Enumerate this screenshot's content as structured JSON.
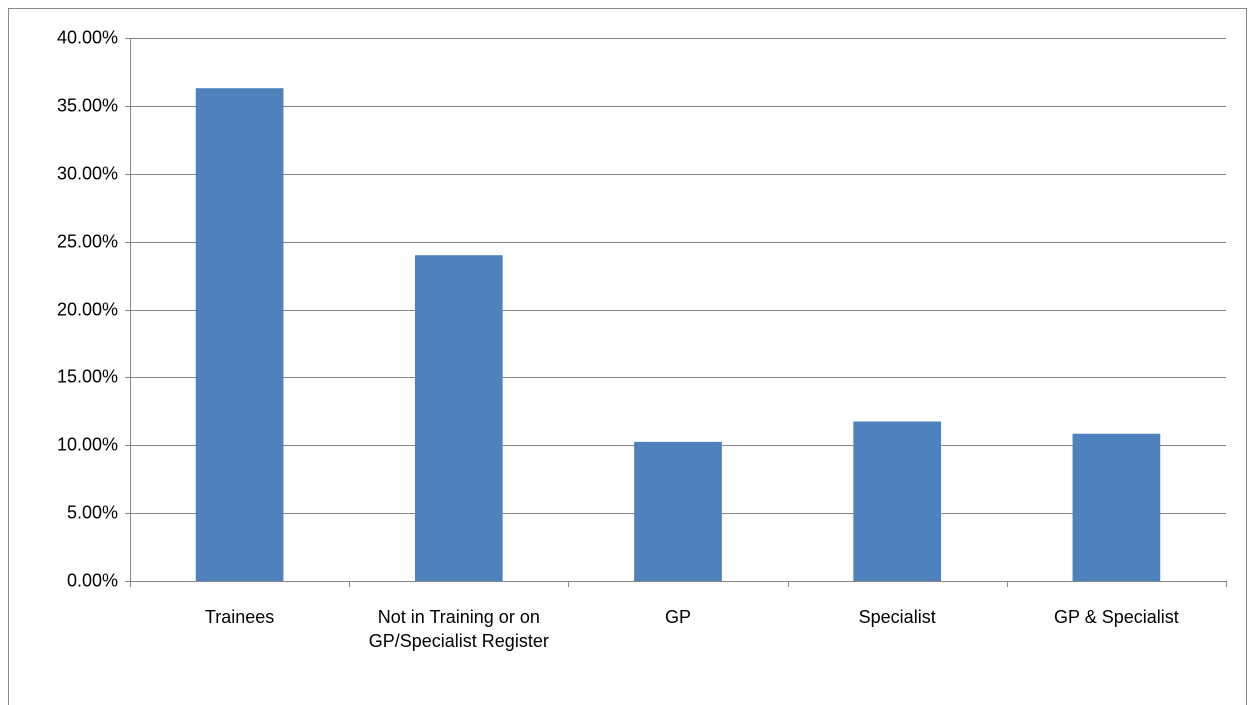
{
  "chart_data": {
    "type": "bar",
    "categories": [
      "Trainees",
      "Not in Training or on GP/Specialist Register",
      "GP",
      "Specialist",
      "GP & Specialist"
    ],
    "values": [
      36.3,
      24.0,
      10.25,
      11.75,
      10.85
    ],
    "color": "#4f81bd",
    "ylim": [
      0,
      40
    ],
    "yticks": [
      {
        "value": 0,
        "label": "0.00%"
      },
      {
        "value": 5,
        "label": "5.00%"
      },
      {
        "value": 10,
        "label": "10.00%"
      },
      {
        "value": 15,
        "label": "15.00%"
      },
      {
        "value": 20,
        "label": "20.00%"
      },
      {
        "value": 25,
        "label": "25.00%"
      },
      {
        "value": 30,
        "label": "30.00%"
      },
      {
        "value": 35,
        "label": "35.00%"
      },
      {
        "value": 40,
        "label": "40.00%"
      }
    ],
    "grid": true
  }
}
